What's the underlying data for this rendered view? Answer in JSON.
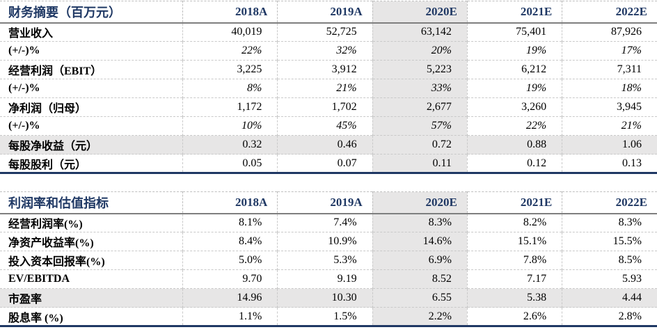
{
  "colors": {
    "accent_navy": "#1f3864",
    "header_rule_gray": "#7f7f7f",
    "grid_dash_gray": "#bfbfbf",
    "highlight_fill": "#e7e6e6"
  },
  "tables": [
    {
      "title": "财务摘要（百万元）",
      "columns": [
        "2018A",
        "2019A",
        "2020E",
        "2021E",
        "2022E"
      ],
      "highlight_column_index": 2,
      "rows": [
        {
          "label": "营业收入",
          "values": [
            "40,019",
            "52,725",
            "63,142",
            "75,401",
            "87,926"
          ],
          "italic": false,
          "shaded": false
        },
        {
          "label": "(+/-)%",
          "values": [
            "22%",
            "32%",
            "20%",
            "19%",
            "17%"
          ],
          "italic": true,
          "shaded": false
        },
        {
          "label": "经营利润（EBIT）",
          "values": [
            "3,225",
            "3,912",
            "5,223",
            "6,212",
            "7,311"
          ],
          "italic": false,
          "shaded": false
        },
        {
          "label": "(+/-)%",
          "values": [
            "8%",
            "21%",
            "33%",
            "19%",
            "18%"
          ],
          "italic": true,
          "shaded": false
        },
        {
          "label": "净利润（归母）",
          "values": [
            "1,172",
            "1,702",
            "2,677",
            "3,260",
            "3,945"
          ],
          "italic": false,
          "shaded": false
        },
        {
          "label": "(+/-)%",
          "values": [
            "10%",
            "45%",
            "57%",
            "22%",
            "21%"
          ],
          "italic": true,
          "shaded": false
        },
        {
          "label": "每股净收益（元）",
          "values": [
            "0.32",
            "0.46",
            "0.72",
            "0.88",
            "1.06"
          ],
          "italic": false,
          "shaded": true
        },
        {
          "label": "每股股利（元）",
          "values": [
            "0.05",
            "0.07",
            "0.11",
            "0.12",
            "0.13"
          ],
          "italic": false,
          "shaded": false
        }
      ]
    },
    {
      "title": "利润率和估值指标",
      "columns": [
        "2018A",
        "2019A",
        "2020E",
        "2021E",
        "2022E"
      ],
      "highlight_column_index": 2,
      "rows": [
        {
          "label": "经营利润率(%)",
          "values": [
            "8.1%",
            "7.4%",
            "8.3%",
            "8.2%",
            "8.3%"
          ],
          "italic": false,
          "shaded": false
        },
        {
          "label": "净资产收益率(%)",
          "values": [
            "8.4%",
            "10.9%",
            "14.6%",
            "15.1%",
            "15.5%"
          ],
          "italic": false,
          "shaded": false
        },
        {
          "label": "投入资本回报率(%)",
          "values": [
            "5.0%",
            "5.3%",
            "6.9%",
            "7.8%",
            "8.5%"
          ],
          "italic": false,
          "shaded": false
        },
        {
          "label": "EV/EBITDA",
          "values": [
            "9.70",
            "9.19",
            "8.52",
            "7.17",
            "5.93"
          ],
          "italic": false,
          "shaded": false
        },
        {
          "label": "市盈率",
          "values": [
            "14.96",
            "10.30",
            "6.55",
            "5.38",
            "4.44"
          ],
          "italic": false,
          "shaded": true
        },
        {
          "label": "股息率 (%)",
          "values": [
            "1.1%",
            "1.5%",
            "2.2%",
            "2.6%",
            "2.8%"
          ],
          "italic": false,
          "shaded": false
        }
      ]
    }
  ]
}
